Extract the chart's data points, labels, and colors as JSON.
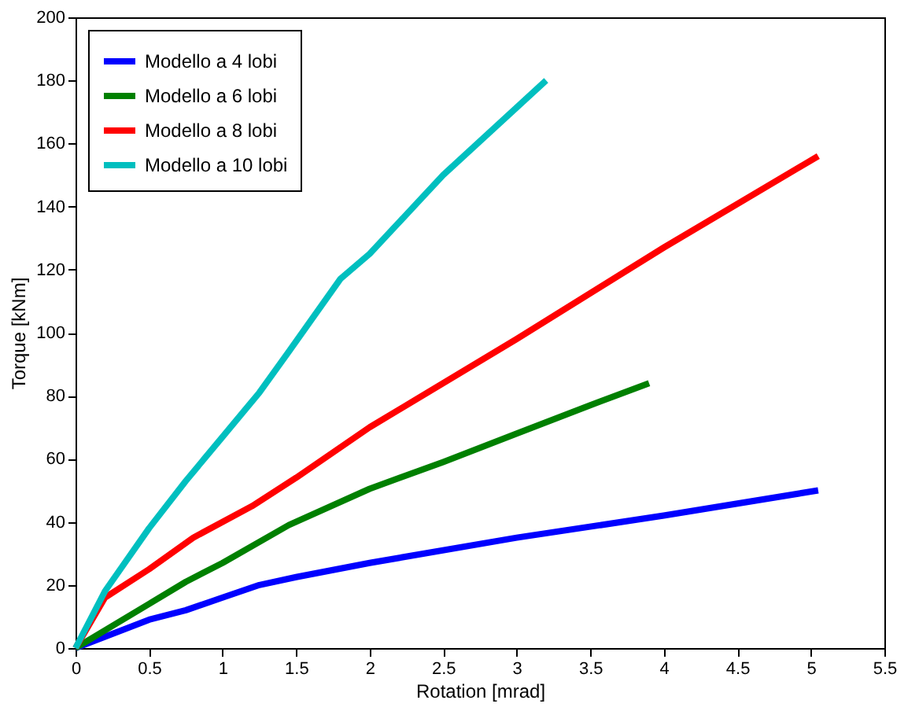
{
  "chart_data": {
    "type": "line",
    "xlabel": "Rotation [mrad]",
    "ylabel": "Torque [kNm]",
    "xlim": [
      0,
      5.5
    ],
    "xticks": [
      0,
      0.5,
      1,
      1.5,
      2,
      2.5,
      3,
      3.5,
      4,
      4.5,
      5,
      5.5
    ],
    "ylim": [
      0,
      200
    ],
    "yticks": [
      0,
      20,
      40,
      60,
      80,
      100,
      120,
      140,
      160,
      180,
      200
    ],
    "grid": false,
    "legend": "top left",
    "line_style": "solid",
    "series": [
      {
        "name": "Modello a 4 lobi",
        "color": "#0000ff",
        "x": [
          0,
          0.5,
          0.75,
          1,
          1.25,
          1.5,
          2,
          3,
          4,
          5.05
        ],
        "values": [
          0,
          9,
          12,
          16,
          20,
          22.5,
          27,
          35,
          42,
          50
        ]
      },
      {
        "name": "Modello a 6 lobi",
        "color": "#008000",
        "x": [
          0,
          0.25,
          0.5,
          0.75,
          1,
          1.45,
          2,
          2.5,
          3,
          3.5,
          3.9
        ],
        "values": [
          0,
          7,
          14,
          21,
          27,
          39,
          50.5,
          59,
          68,
          77,
          84
        ]
      },
      {
        "name": "Modello a 8 lobi",
        "color": "#ff0000",
        "x": [
          0,
          0.2,
          0.5,
          0.8,
          1.2,
          1.5,
          2,
          3,
          4,
          5.05
        ],
        "values": [
          0,
          16,
          25,
          35,
          45,
          54,
          70,
          98,
          127,
          156
        ]
      },
      {
        "name": "Modello a 10 lobi",
        "color": "#00bfbf",
        "x": [
          0,
          0.2,
          0.5,
          0.75,
          1,
          1.25,
          1.45,
          1.8,
          2,
          2.5,
          3.2
        ],
        "values": [
          0,
          18,
          38,
          53,
          67,
          81,
          94,
          117,
          125,
          150,
          180
        ]
      }
    ]
  }
}
